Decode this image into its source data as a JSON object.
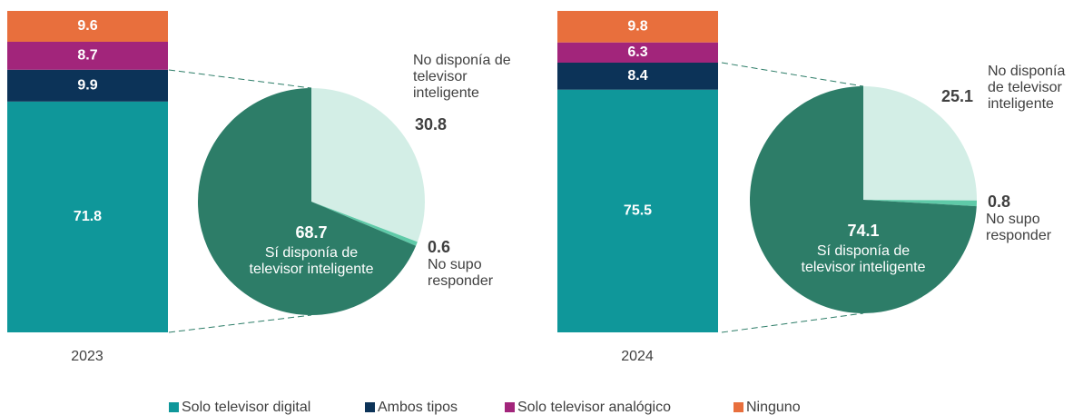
{
  "chart_data": [
    {
      "type": "bar",
      "stacked": true,
      "categories": [
        "2023",
        "2024"
      ],
      "ylim": [
        0,
        100
      ],
      "series": [
        {
          "name": "Solo televisor digital",
          "color": "#0f979a",
          "values": [
            71.8,
            75.5
          ]
        },
        {
          "name": "Ambos tipos",
          "color": "#0c3358",
          "values": [
            9.9,
            8.4
          ]
        },
        {
          "name": "Solo televisor analógico",
          "color": "#a2257b",
          "values": [
            8.7,
            6.3
          ]
        },
        {
          "name": "Ninguno",
          "color": "#e86f3d",
          "values": [
            9.6,
            9.8
          ]
        }
      ]
    },
    {
      "type": "pie",
      "categories": [
        "No disponía de televisor inteligente",
        "No supo responder",
        "Sí disponía de televisor inteligente"
      ],
      "values": [
        30.8,
        0.6,
        68.7
      ],
      "colors": [
        "#d3eee6",
        "#5fcaa8",
        "#2d7d68"
      ]
    },
    {
      "type": "pie",
      "categories": [
        "No disponía de televisor inteligente",
        "No supo responder",
        "Sí disponía de televisor inteligente"
      ],
      "values": [
        25.1,
        0.8,
        74.1
      ],
      "colors": [
        "#d3eee6",
        "#5fcaa8",
        "#2d7d68"
      ]
    }
  ]
}
